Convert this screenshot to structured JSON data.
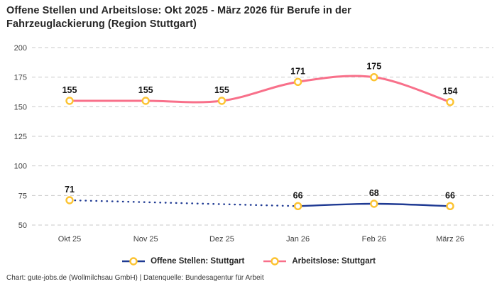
{
  "title": "Offene Stellen und Arbeitslose: Okt 2025 - März 2026 für Berufe in der Fahrzeuglackierung (Region Stuttgart)",
  "footer": "Chart: gute-jobs.de (Wollmilchsau GmbH) | Datenquelle: Bundesagentur für Arbeit",
  "colors": {
    "background": "#ffffff",
    "grid": "#c9c9c9",
    "marker_ring": "#fcc331",
    "marker_fill": "#ffffff",
    "offene_stellen_line": "#1f3a93",
    "arbeitslose_line": "#f8708a",
    "title_text": "#262626",
    "tick_text": "#404040",
    "data_label_text": "#141414"
  },
  "chart_data": {
    "type": "line",
    "title": "Offene Stellen und Arbeitslose: Okt 2025 - März 2026 für Berufe in der Fahrzeuglackierung (Region Stuttgart)",
    "categories": [
      "Okt 25",
      "Nov 25",
      "Dez 25",
      "Jan 26",
      "Feb 26",
      "März 26"
    ],
    "series": [
      {
        "name": "Offene Stellen: Stuttgart",
        "color": "#1f3a93",
        "values": [
          71,
          null,
          null,
          66,
          68,
          66
        ],
        "data_labels": [
          71,
          66,
          68,
          66
        ],
        "missing_segment_style": "dotted"
      },
      {
        "name": "Arbeitslose: Stuttgart",
        "color": "#f8708a",
        "values": [
          155,
          155,
          155,
          171,
          175,
          154
        ],
        "data_labels": [
          155,
          155,
          155,
          171,
          175,
          154
        ]
      }
    ],
    "xlabel": "",
    "ylabel": "",
    "ylim": [
      50,
      200
    ],
    "yticks": [
      50,
      75,
      100,
      125,
      150,
      175,
      200
    ],
    "grid": "horizontal-dashed",
    "line_style": "smooth",
    "marker": "circle-yellow-ring-white-fill",
    "legend_position": "bottom-center"
  }
}
